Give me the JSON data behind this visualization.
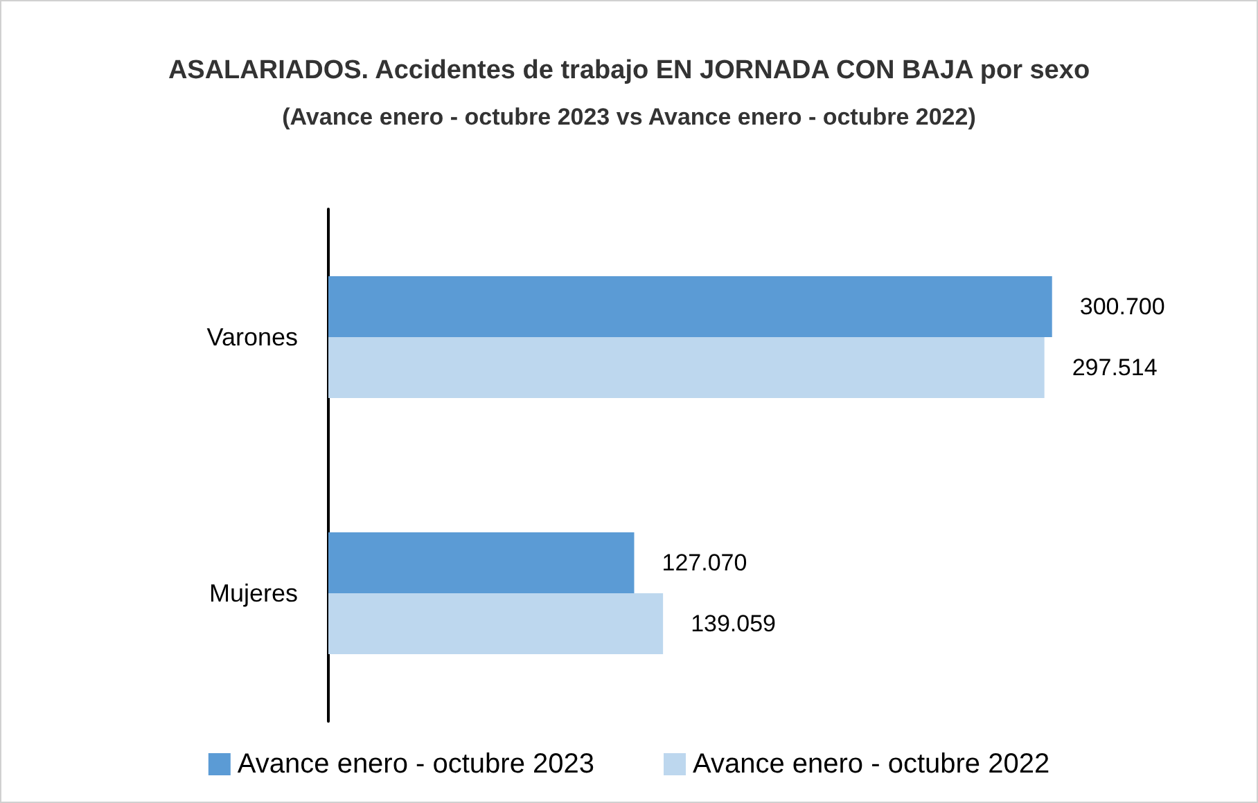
{
  "chart_data": {
    "type": "bar",
    "orientation": "horizontal",
    "title": "ASALARIADOS. Accidentes de trabajo EN JORNADA CON BAJA por sexo",
    "subtitle": "(Avance enero - octubre 2023 vs Avance enero - octubre 2022)",
    "categories": [
      "Varones",
      "Mujeres"
    ],
    "series": [
      {
        "name": "Avance enero - octubre 2023",
        "color": "#5b9bd5",
        "values": [
          300700,
          127070
        ],
        "value_labels": [
          "300.700",
          "127.070"
        ]
      },
      {
        "name": "Avance enero - octubre 2022",
        "color": "#bdd7ee",
        "values": [
          297514,
          139059
        ],
        "value_labels": [
          "297.514",
          "139.059"
        ]
      }
    ],
    "legend": "bottom",
    "grid": false
  }
}
